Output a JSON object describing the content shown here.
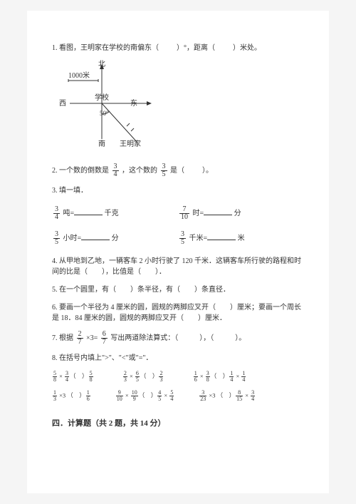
{
  "q1": {
    "text_a": "1. 看图，王明家在学校的南偏东（",
    "text_b": "）°，距离（",
    "text_c": "）米处。"
  },
  "diagram": {
    "north": "北",
    "south": "南",
    "east": "东",
    "west": "西",
    "school": "学校",
    "scale": "1000米",
    "angle": "50°",
    "name": "王明家"
  },
  "q2": {
    "a": "2. 一个数的倒数是",
    "f1n": "3",
    "f1d": "4",
    "b": "，这个数的",
    "f2n": "3",
    "f2d": "5",
    "c": "是（",
    "d": "）。"
  },
  "q3": {
    "title": "3. 填一填．",
    "r1c1_fn": "3",
    "r1c1_fd": "4",
    "r1c1_a": "吨=",
    "r1c1_b": "千克",
    "r1c2_fn": "7",
    "r1c2_fd": "10",
    "r1c2_a": "时=",
    "r1c2_b": "分",
    "r2c1_fn": "3",
    "r2c1_fd": "5",
    "r2c1_a": "小时=",
    "r2c1_b": "分",
    "r2c2_fn": "3",
    "r2c2_fd": "5",
    "r2c2_a": "千米=",
    "r2c2_b": "米"
  },
  "q4": "4. 从甲地到乙地，一辆客车 2 小时行驶了 120 千米．这辆客车所行驶的路程和时间的比是（　　），比值是（　　）．",
  "q5": "5. 在一个圆里，有（　　）条半径，有（　　）条直径．",
  "q6": "6. 要画一个半径为 4 厘米的圆，圆规的两脚应叉开（　　）厘米；要画一个周长是 18．84 厘米的圆，圆规的两脚应叉开（　　）厘米．",
  "q7": {
    "a": "7. 根据",
    "f1n": "2",
    "f1d": "7",
    "b": "×3=",
    "f2n": "6",
    "f2d": "7",
    "c": "写出两道除法算式：（　　　），（　　　）。"
  },
  "q8": "8. 在括号内填上\">\"、\"<\"或\"=\"．",
  "exprs": {
    "row1": [
      {
        "l": {
          "n": "5",
          "d": "8"
        },
        "op": "×",
        "r": {
          "n": "3",
          "d": "4"
        },
        "cmp": "（　）",
        "rr": {
          "n": "5",
          "d": "8"
        }
      },
      {
        "l": {
          "n": "2",
          "d": "3"
        },
        "op": "×",
        "r": {
          "n": "6",
          "d": "5"
        },
        "cmp": "（　）",
        "rr": {
          "n": "2",
          "d": "3"
        }
      },
      {
        "l": {
          "n": "1",
          "d": "6"
        },
        "op": "×",
        "r": {
          "n": "3",
          "d": "8"
        },
        "cmp": "（　）",
        "rr": {
          "n": "1",
          "d": "4"
        },
        "op2": "×",
        "rr2": {
          "n": "1",
          "d": "4"
        }
      },
      {}
    ],
    "row2": [
      {
        "l": {
          "n": "1",
          "d": "3"
        },
        "op": "×3",
        "cmp": "（　）",
        "rr": {
          "n": "1",
          "d": "6"
        }
      },
      {
        "l": {
          "n": "9",
          "d": "10"
        },
        "op": "×",
        "r": {
          "n": "10",
          "d": "9"
        },
        "cmp": "（　）",
        "rr": {
          "n": "4",
          "d": "5"
        },
        "op2": "×",
        "rr2": {
          "n": "5",
          "d": "4"
        }
      },
      {
        "l": {
          "n": "3",
          "d": "23"
        },
        "op": "×3",
        "cmp": "（　）",
        "rr": {
          "n": "8",
          "d": "15"
        },
        "op2": "×",
        "rr2": {
          "n": "3",
          "d": "4"
        }
      },
      {}
    ]
  },
  "section4": "四．计算题（共 2 题，共 14 分）"
}
